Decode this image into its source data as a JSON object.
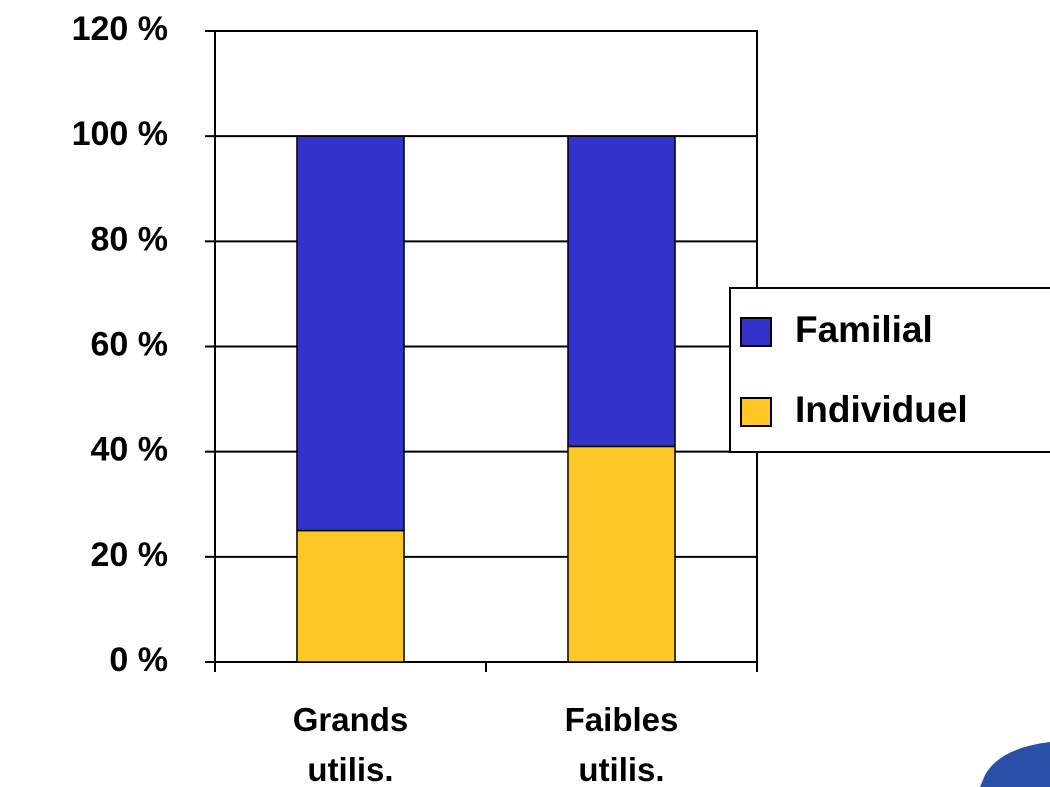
{
  "chart_data": {
    "type": "stacked_bar",
    "categories": [
      "Grands utilis.",
      "Faibles utilis."
    ],
    "series": [
      {
        "name": "Individuel",
        "color": "#ffc726",
        "values": [
          25,
          41
        ]
      },
      {
        "name": "Familial",
        "color": "#3333cc",
        "values": [
          75,
          59
        ]
      }
    ],
    "ylim": [
      0,
      120
    ],
    "yticks": [
      {
        "value": 0,
        "label": "0 %"
      },
      {
        "value": 20,
        "label": "20 %"
      },
      {
        "value": 40,
        "label": "40 %"
      },
      {
        "value": 60,
        "label": "60 %"
      },
      {
        "value": 80,
        "label": "80 %"
      },
      {
        "value": 100,
        "label": "100 %"
      },
      {
        "value": 120,
        "label": "120 %"
      }
    ],
    "grid": true,
    "legend": "right"
  }
}
